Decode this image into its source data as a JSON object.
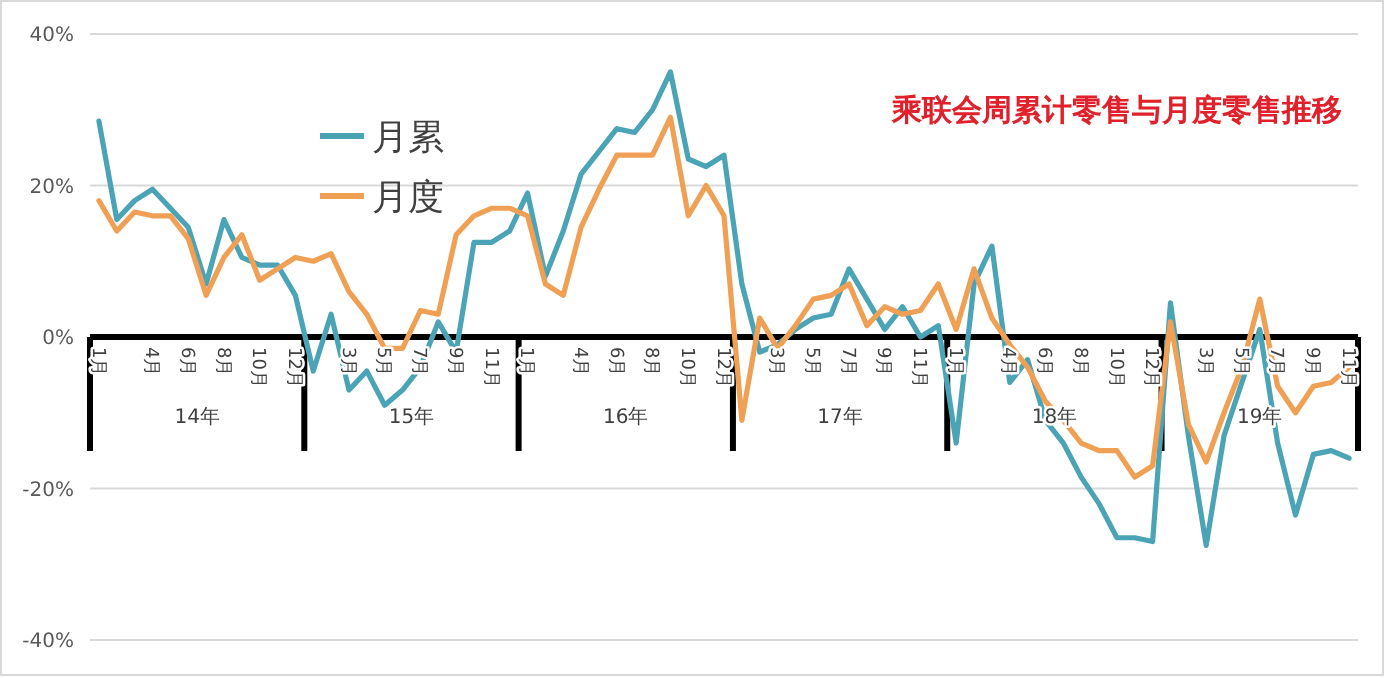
{
  "chart_data": {
    "type": "line",
    "title": "乘联会周累计零售与月度零售推移",
    "categories": [
      "1月",
      null,
      null,
      "4月",
      null,
      "6月",
      null,
      "8月",
      null,
      "10月",
      null,
      "12月",
      null,
      null,
      "3月",
      null,
      "5月",
      null,
      "7月",
      null,
      "9月",
      null,
      "11月",
      null,
      "1月",
      null,
      null,
      "4月",
      null,
      "6月",
      null,
      "8月",
      null,
      "10月",
      null,
      "12月",
      null,
      null,
      "3月",
      null,
      "5月",
      null,
      "7月",
      null,
      "9月",
      null,
      "11月",
      null,
      "1月",
      null,
      null,
      "4月",
      null,
      "6月",
      null,
      "8月",
      null,
      "10月",
      null,
      "12月",
      null,
      null,
      "3月",
      null,
      "5月",
      null,
      "7月",
      null,
      "9月",
      null,
      "11月"
    ],
    "series": [
      {
        "name": "月累",
        "color": "#4ba3b6",
        "values": [
          28.5,
          15.5,
          18,
          19.5,
          17,
          14.5,
          7,
          15.5,
          10.5,
          9.5,
          9.5,
          5.5,
          -4.5,
          3,
          -7,
          -4.5,
          -9,
          -7,
          -4,
          2,
          -2,
          12.5,
          12.5,
          14,
          19,
          8,
          14,
          21.5,
          24.5,
          27.5,
          27,
          30,
          35,
          23.5,
          22.5,
          24,
          7,
          -2,
          -1,
          1,
          2.5,
          3,
          9,
          5,
          1,
          4,
          0,
          1.5,
          -14,
          7,
          12,
          -6,
          -3,
          -11,
          -14,
          -18.5,
          -22,
          -26.5,
          -26.5,
          -27,
          4.5,
          -13,
          -27.5,
          -13,
          -6,
          1,
          -14,
          -23.5,
          -15.5,
          -15,
          -16
        ]
      },
      {
        "name": "月度",
        "color": "#f0a055",
        "values": [
          18,
          14,
          16.5,
          16,
          16,
          13,
          5.5,
          10.5,
          13.5,
          7.5,
          9,
          10.5,
          10,
          11,
          6,
          3,
          -1.5,
          -1.5,
          3.5,
          3,
          13.5,
          16,
          17,
          17,
          16,
          7,
          5.5,
          14.5,
          19.5,
          24,
          24,
          24,
          29,
          16,
          20,
          16,
          -11,
          2.5,
          -1.5,
          1.5,
          5,
          5.5,
          7,
          1.5,
          4,
          3,
          3.5,
          7,
          1,
          9,
          2.5,
          -1,
          -4,
          -8.5,
          -11,
          -14,
          -15,
          -15,
          -18.5,
          -17,
          2,
          -11.5,
          -16.5,
          -10,
          -4,
          5,
          -6.5,
          -10,
          -6.5,
          -6,
          -4
        ]
      }
    ],
    "ylim": [
      -40,
      40
    ],
    "yticks": [
      {
        "value": -40,
        "label": "-40%"
      },
      {
        "value": -20,
        "label": "-20%"
      },
      {
        "value": 0,
        "label": "0%"
      },
      {
        "value": 20,
        "label": "20%"
      },
      {
        "value": 40,
        "label": "40%"
      }
    ],
    "grid": "y",
    "legend": "top left",
    "line_style": "solid",
    "marker": "none",
    "annotations": [
      "14年",
      "15年",
      "16年",
      "17年",
      "18年",
      "19年"
    ]
  }
}
